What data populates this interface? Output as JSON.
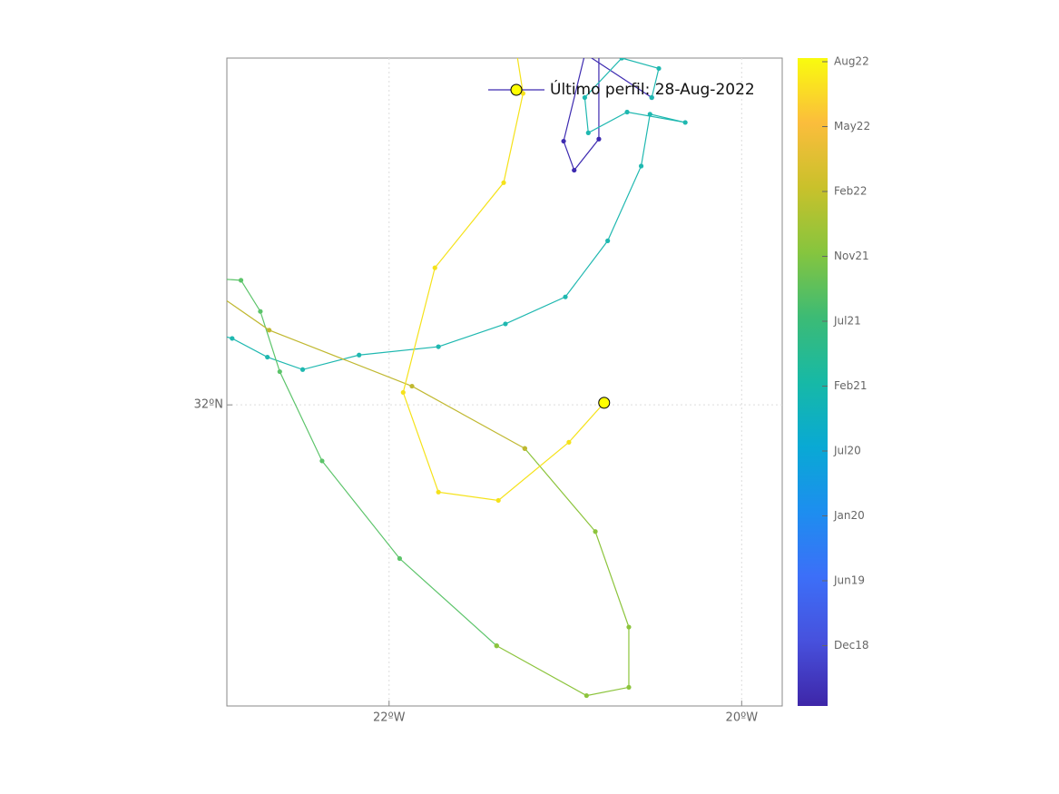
{
  "chart_data": {
    "type": "line",
    "xlim": [
      -22.92,
      -19.77
    ],
    "ylim": [
      30.55,
      33.67
    ],
    "xticks": [
      {
        "value": -22,
        "label": "22ºW"
      },
      {
        "value": -20,
        "label": "20ºW"
      }
    ],
    "yticks": [
      {
        "value": 32,
        "label": "32ºN"
      }
    ],
    "grid": true,
    "legend_label": "Último perfil: 28-Aug-2022",
    "legend_line_color": "#3d2ab0",
    "last_point_color": "#ffff00",
    "series": [
      {
        "color": "#3d2ab0",
        "x": [
          -20.84,
          -21.01,
          -20.95,
          -20.81,
          -20.81,
          -21.12,
          -20.51
        ],
        "values": [
          33.86,
          33.27,
          33.13,
          33.28,
          33.86,
          33.82,
          33.48
        ]
      },
      {
        "color": "#1fb8b0",
        "x": [
          -20.51,
          -20.47,
          -20.68,
          -20.89,
          -20.87,
          -20.65,
          -20.32,
          -20.52,
          -20.57,
          -20.76,
          -21.0,
          -21.34,
          -21.72,
          -22.17,
          -22.49,
          -22.69,
          -22.89,
          -23.02
        ],
        "values": [
          33.48,
          33.62,
          33.67,
          33.48,
          33.31,
          33.41,
          33.36,
          33.4,
          33.15,
          32.79,
          32.52,
          32.39,
          32.28,
          32.24,
          32.17,
          32.23,
          32.32,
          32.35
        ]
      },
      {
        "color": "#5cc46a",
        "x": [
          -23.02,
          -22.84,
          -22.73,
          -22.62,
          -22.38,
          -21.94,
          -21.39
        ],
        "values": [
          32.61,
          32.6,
          32.45,
          32.16,
          31.73,
          31.26,
          30.84
        ]
      },
      {
        "color": "#8cc43c",
        "x": [
          -21.39,
          -20.88,
          -20.64,
          -20.64,
          -20.83,
          -21.23
        ],
        "values": [
          30.84,
          30.6,
          30.64,
          30.93,
          31.39,
          31.79
        ]
      },
      {
        "color": "#c0b830",
        "x": [
          -21.23,
          -21.87,
          -22.68,
          -23.02
        ],
        "values": [
          31.79,
          32.09,
          32.36,
          32.56
        ]
      },
      {
        "color": "#f5e21a",
        "x": [
          -21.29,
          -21.24,
          -21.35,
          -21.74,
          -21.92,
          -21.72,
          -21.38,
          -20.98,
          -20.78
        ],
        "values": [
          33.77,
          33.5,
          33.07,
          32.66,
          32.06,
          31.58,
          31.54,
          31.82,
          32.01
        ]
      }
    ],
    "colorbar": {
      "colors": [
        "#f9fb0e",
        "#fbbd3c",
        "#c9c12b",
        "#86c53e",
        "#3cbb75",
        "#17b9a6",
        "#09a9d4",
        "#1d8eef",
        "#3c6ff8",
        "#4751dd",
        "#3e26a8"
      ],
      "ticks": [
        "Aug22",
        "May22",
        "Feb22",
        "Nov21",
        "Jul21",
        "Feb21",
        "Jul20",
        "Jan20",
        "Jun19",
        "Dec18"
      ]
    }
  }
}
